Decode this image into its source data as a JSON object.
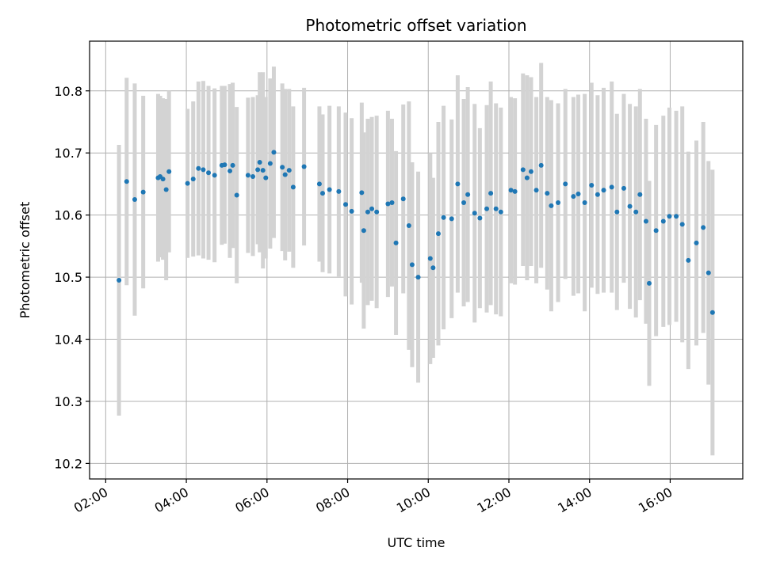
{
  "chart_data": {
    "type": "scatter",
    "title": "Photometric offset variation",
    "xlabel": "UTC time",
    "ylabel": "Photometric offset",
    "x_unit": "hours UTC",
    "xlim": [
      1.6,
      17.8
    ],
    "ylim": [
      10.175,
      10.88
    ],
    "x_ticks": [
      2,
      4,
      6,
      8,
      10,
      12,
      14,
      16
    ],
    "x_tick_labels": [
      "02:00",
      "04:00",
      "06:00",
      "08:00",
      "10:00",
      "12:00",
      "14:00",
      "16:00"
    ],
    "y_ticks": [
      10.2,
      10.3,
      10.4,
      10.5,
      10.6,
      10.7,
      10.8
    ],
    "y_tick_labels": [
      "10.2",
      "10.3",
      "10.4",
      "10.5",
      "10.6",
      "10.7",
      "10.8"
    ],
    "grid": true,
    "colors": {
      "points": "#1f77b4",
      "error_bars": "#d3d3d3",
      "grid": "#b0b0b0"
    },
    "points": [
      [
        2.33,
        10.495,
        0.218
      ],
      [
        2.52,
        10.654,
        0.167
      ],
      [
        2.72,
        10.625,
        0.187
      ],
      [
        2.93,
        10.637,
        0.155
      ],
      [
        3.3,
        10.66,
        0.135
      ],
      [
        3.35,
        10.662,
        0.13
      ],
      [
        3.42,
        10.658,
        0.13
      ],
      [
        3.5,
        10.641,
        0.146
      ],
      [
        3.57,
        10.67,
        0.13
      ],
      [
        4.03,
        10.651,
        0.12
      ],
      [
        4.17,
        10.658,
        0.125
      ],
      [
        4.3,
        10.675,
        0.14
      ],
      [
        4.42,
        10.673,
        0.143
      ],
      [
        4.55,
        10.668,
        0.14
      ],
      [
        4.7,
        10.664,
        0.14
      ],
      [
        4.88,
        10.68,
        0.128
      ],
      [
        4.95,
        10.681,
        0.127
      ],
      [
        5.08,
        10.671,
        0.14
      ],
      [
        5.15,
        10.68,
        0.133
      ],
      [
        5.25,
        10.632,
        0.142
      ],
      [
        5.53,
        10.664,
        0.125
      ],
      [
        5.65,
        10.662,
        0.128
      ],
      [
        5.77,
        10.673,
        0.12
      ],
      [
        5.82,
        10.685,
        0.145
      ],
      [
        5.9,
        10.672,
        0.158
      ],
      [
        5.97,
        10.66,
        0.13
      ],
      [
        6.08,
        10.683,
        0.137
      ],
      [
        6.17,
        10.701,
        0.138
      ],
      [
        6.38,
        10.677,
        0.135
      ],
      [
        6.45,
        10.665,
        0.138
      ],
      [
        6.55,
        10.672,
        0.131
      ],
      [
        6.65,
        10.645,
        0.13
      ],
      [
        6.92,
        10.678,
        0.127
      ],
      [
        7.3,
        10.65,
        0.125
      ],
      [
        7.38,
        10.635,
        0.127
      ],
      [
        7.55,
        10.641,
        0.135
      ],
      [
        7.78,
        10.638,
        0.137
      ],
      [
        7.95,
        10.617,
        0.148
      ],
      [
        8.1,
        10.606,
        0.15
      ],
      [
        8.35,
        10.636,
        0.145
      ],
      [
        8.4,
        10.575,
        0.158
      ],
      [
        8.5,
        10.605,
        0.15
      ],
      [
        8.6,
        10.61,
        0.148
      ],
      [
        8.72,
        10.605,
        0.155
      ],
      [
        9.0,
        10.618,
        0.15
      ],
      [
        9.1,
        10.62,
        0.135
      ],
      [
        9.2,
        10.555,
        0.148
      ],
      [
        9.38,
        10.626,
        0.152
      ],
      [
        9.52,
        10.583,
        0.2
      ],
      [
        9.6,
        10.52,
        0.165
      ],
      [
        9.75,
        10.5,
        0.17
      ],
      [
        10.05,
        10.53,
        0.17
      ],
      [
        10.12,
        10.515,
        0.145
      ],
      [
        10.25,
        10.57,
        0.18
      ],
      [
        10.38,
        10.596,
        0.18
      ],
      [
        10.58,
        10.594,
        0.16
      ],
      [
        10.73,
        10.65,
        0.175
      ],
      [
        10.88,
        10.62,
        0.167
      ],
      [
        10.98,
        10.633,
        0.173
      ],
      [
        11.15,
        10.603,
        0.176
      ],
      [
        11.28,
        10.595,
        0.145
      ],
      [
        11.45,
        10.61,
        0.167
      ],
      [
        11.55,
        10.635,
        0.18
      ],
      [
        11.68,
        10.61,
        0.17
      ],
      [
        11.8,
        10.605,
        0.168
      ],
      [
        12.05,
        10.64,
        0.15
      ],
      [
        12.15,
        10.638,
        0.15
      ],
      [
        12.35,
        10.673,
        0.155
      ],
      [
        12.45,
        10.66,
        0.165
      ],
      [
        12.55,
        10.67,
        0.152
      ],
      [
        12.68,
        10.64,
        0.15
      ],
      [
        12.8,
        10.68,
        0.165
      ],
      [
        12.95,
        10.635,
        0.155
      ],
      [
        13.05,
        10.615,
        0.17
      ],
      [
        13.22,
        10.62,
        0.16
      ],
      [
        13.4,
        10.65,
        0.153
      ],
      [
        13.6,
        10.63,
        0.16
      ],
      [
        13.72,
        10.634,
        0.16
      ],
      [
        13.88,
        10.62,
        0.175
      ],
      [
        14.05,
        10.648,
        0.165
      ],
      [
        14.2,
        10.633,
        0.16
      ],
      [
        14.35,
        10.64,
        0.165
      ],
      [
        14.55,
        10.645,
        0.17
      ],
      [
        14.68,
        10.605,
        0.158
      ],
      [
        14.85,
        10.643,
        0.152
      ],
      [
        15.0,
        10.614,
        0.165
      ],
      [
        15.15,
        10.605,
        0.17
      ],
      [
        15.25,
        10.633,
        0.17
      ],
      [
        15.4,
        10.59,
        0.165
      ],
      [
        15.48,
        10.49,
        0.165
      ],
      [
        15.65,
        10.575,
        0.17
      ],
      [
        15.83,
        10.59,
        0.17
      ],
      [
        15.98,
        10.598,
        0.175
      ],
      [
        16.15,
        10.598,
        0.17
      ],
      [
        16.3,
        10.585,
        0.19
      ],
      [
        16.45,
        10.527,
        0.175
      ],
      [
        16.65,
        10.555,
        0.165
      ],
      [
        16.82,
        10.58,
        0.17
      ],
      [
        16.95,
        10.507,
        0.18
      ],
      [
        17.05,
        10.443,
        0.23
      ]
    ]
  }
}
